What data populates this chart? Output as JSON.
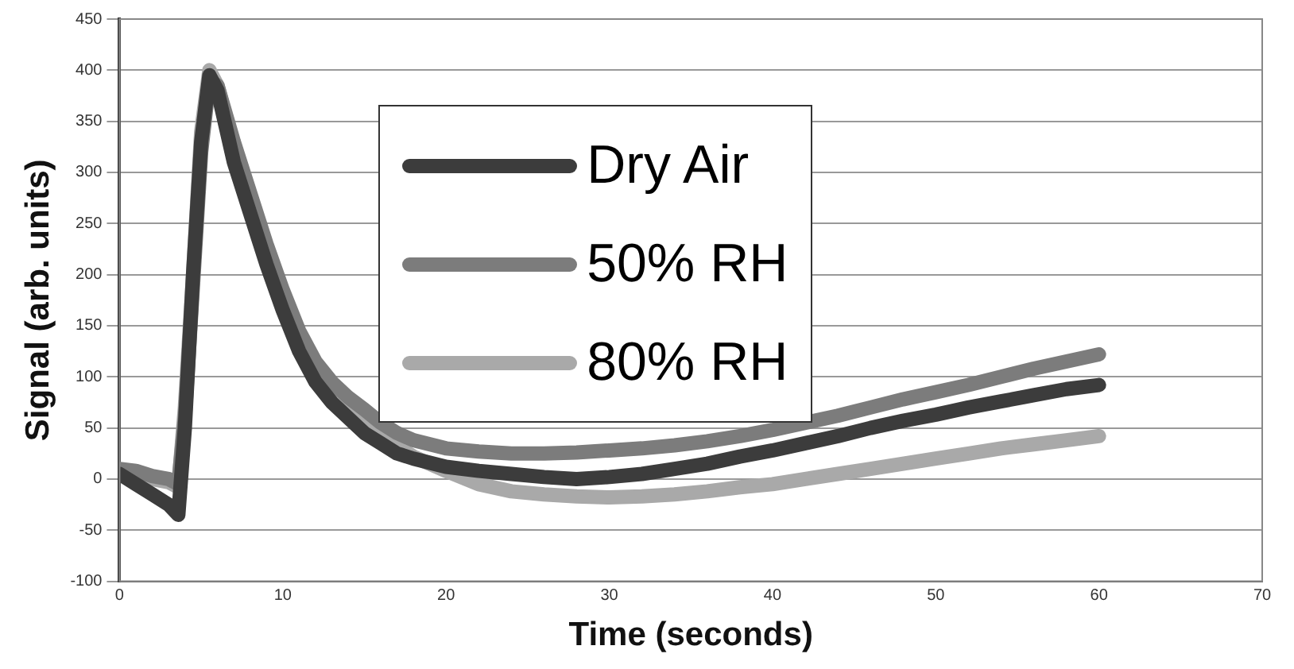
{
  "chart_data": {
    "type": "line",
    "xlabel": "Time (seconds)",
    "ylabel": "Signal (arb. units)",
    "xlim": [
      0,
      70
    ],
    "xticks": [
      0,
      10,
      20,
      30,
      40,
      50,
      60,
      70
    ],
    "ylim": [
      -100,
      450
    ],
    "yticks": [
      -100,
      -50,
      0,
      50,
      100,
      150,
      200,
      250,
      300,
      350,
      400,
      450
    ],
    "grid": "y",
    "legend": "top",
    "marker": "none",
    "line_style": "solid",
    "x": [
      0,
      1,
      2,
      3,
      3.6,
      4,
      4.5,
      5,
      5.5,
      6,
      7,
      8,
      9,
      10,
      11,
      12,
      13,
      14,
      15,
      16,
      17,
      18,
      20,
      22,
      24,
      26,
      28,
      30,
      32,
      34,
      36,
      38,
      40,
      42,
      44,
      46,
      48,
      50,
      52,
      54,
      56,
      58,
      60
    ],
    "series": [
      {
        "name": "Dry Air",
        "color": "#3c3c3c",
        "values": [
          5,
          -5,
          -15,
          -25,
          -35,
          50,
          200,
          330,
          395,
          380,
          310,
          260,
          210,
          165,
          125,
          95,
          75,
          60,
          45,
          35,
          25,
          20,
          12,
          8,
          5,
          2,
          0,
          2,
          5,
          10,
          15,
          22,
          28,
          35,
          42,
          50,
          57,
          63,
          70,
          76,
          82,
          88,
          92
        ]
      },
      {
        "name": "50% RH",
        "color": "#7c7c7c",
        "values": [
          10,
          8,
          3,
          0,
          -5,
          60,
          190,
          320,
          390,
          385,
          330,
          280,
          230,
          185,
          145,
          115,
          95,
          80,
          68,
          55,
          45,
          38,
          30,
          27,
          25,
          25,
          26,
          28,
          30,
          33,
          37,
          42,
          48,
          55,
          62,
          70,
          78,
          85,
          92,
          100,
          108,
          115,
          122
        ]
      },
      {
        "name": "80% RH",
        "color": "#a9a9a9",
        "values": [
          5,
          3,
          0,
          -3,
          -8,
          70,
          200,
          340,
          400,
          385,
          325,
          270,
          220,
          175,
          135,
          105,
          85,
          68,
          55,
          42,
          32,
          22,
          8,
          -5,
          -12,
          -15,
          -17,
          -18,
          -17,
          -15,
          -12,
          -8,
          -5,
          0,
          5,
          10,
          15,
          20,
          25,
          30,
          34,
          38,
          42
        ]
      }
    ]
  }
}
